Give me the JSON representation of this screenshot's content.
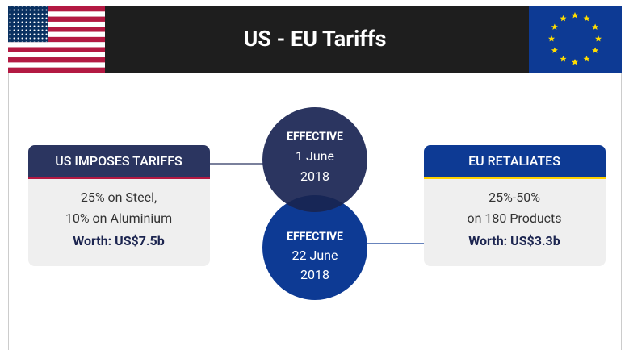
{
  "header": {
    "title": "US - EU Tariffs"
  },
  "left_card": {
    "title": "US IMPOSES TARIFFS",
    "lines": [
      "25% on Steel,",
      "10% on Aluminium"
    ],
    "worth": "Worth: US$7.5b"
  },
  "right_card": {
    "title": "EU RETALIATES",
    "lines": [
      "25%-50%",
      "on 180 Products"
    ],
    "worth": "Worth: US$3.3b"
  },
  "circles": [
    {
      "label": "EFFECTIVE",
      "date": "1 June",
      "year": "2018"
    },
    {
      "label": "EFFECTIVE",
      "date": "22 June",
      "year": "2018"
    }
  ]
}
